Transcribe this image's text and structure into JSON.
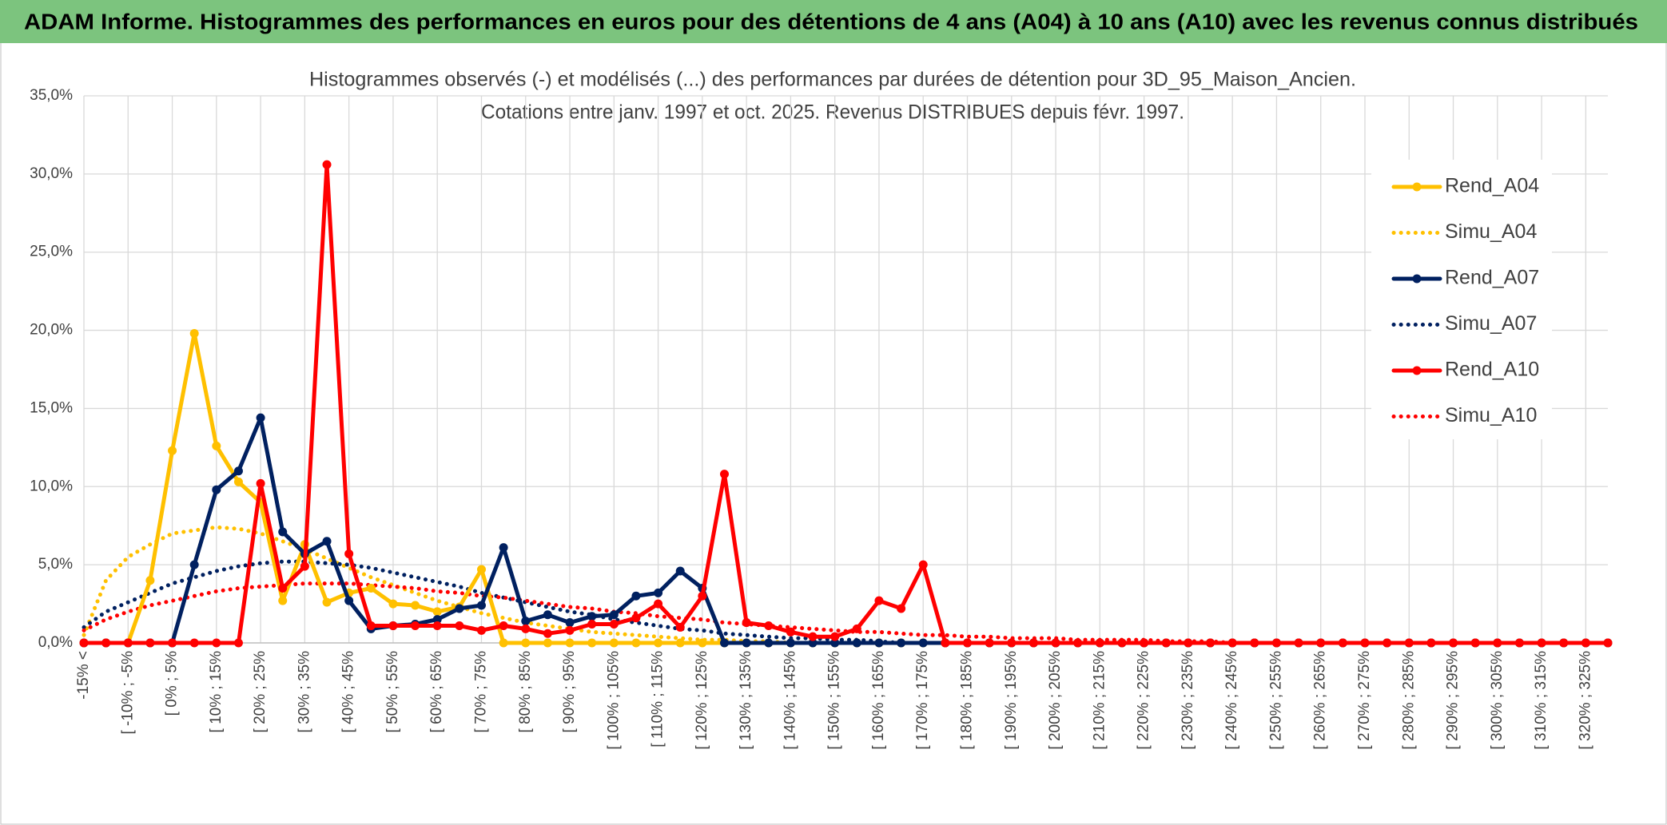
{
  "header": {
    "title": "ADAM Informe. Histogrammes des performances en euros pour des détentions de 4 ans (A04) à 10 ans (A10) avec les revenus connus distribués"
  },
  "chart_data": {
    "type": "line",
    "title": "Histogrammes observés (-) et modélisés (...) des performances par durées de détention pour 3D_95_Maison_Ancien.",
    "subtitle": "Cotations entre janv. 1997 et oct. 2025. Revenus DISTRIBUES depuis févr. 1997.",
    "categories": [
      "-15% <",
      null,
      "[ -10% ; -5%",
      null,
      "[ 0% ; 5%",
      null,
      "[ 10% ; 15%",
      null,
      "[ 20% ; 25%",
      null,
      "[ 30% ; 35%",
      null,
      "[ 40% ; 45%",
      null,
      "[ 50% ; 55%",
      null,
      "[ 60% ; 65%",
      null,
      "[ 70% ; 75%",
      null,
      "[ 80% ; 85%",
      null,
      "[ 90% ; 95%",
      null,
      "[ 100% ; 105%",
      null,
      "[ 110% ; 115%",
      null,
      "[ 120% ; 125%",
      null,
      "[ 130% ; 135%",
      null,
      "[ 140% ; 145%",
      null,
      "[ 150% ; 155%",
      null,
      "[ 160% ; 165%",
      null,
      "[ 170% ; 175%",
      null,
      "[ 180% ; 185%",
      null,
      "[ 190% ; 195%",
      null,
      "[ 200% ; 205%",
      null,
      "[ 210% ; 215%",
      null,
      "[ 220% ; 225%",
      null,
      "[ 230% ; 235%",
      null,
      "[ 240% ; 245%",
      null,
      "[ 250% ; 255%",
      null,
      "[ 260% ; 265%",
      null,
      "[ 270% ; 275%",
      null,
      "[ 280% ; 285%",
      null,
      "[ 290% ; 295%",
      null,
      "[ 300% ; 305%",
      null,
      "[ 310% ; 315%",
      null,
      "[ 320% ; 325%",
      null
    ],
    "series": [
      {
        "name": "Rend_A04",
        "color": "#ffc000",
        "line_style": "solid",
        "values": [
          0,
          0,
          0,
          4.0,
          12.3,
          19.8,
          12.6,
          10.3,
          9.0,
          2.7,
          6.3,
          2.6,
          3.2,
          3.5,
          2.5,
          2.4,
          2.0,
          2.3,
          4.7,
          0,
          0,
          0,
          0,
          0,
          0,
          0,
          0,
          0,
          0,
          0,
          0,
          0,
          0,
          0,
          0,
          0,
          0,
          0,
          0,
          0,
          0,
          0,
          0,
          0,
          0,
          0,
          0,
          0,
          0,
          0,
          0,
          0,
          0,
          0,
          0,
          0,
          0,
          0,
          0,
          0,
          0,
          0,
          0,
          0,
          0,
          0,
          0,
          0,
          0,
          0
        ]
      },
      {
        "name": "Simu_A04",
        "color": "#ffc000",
        "line_style": "dotted",
        "values": [
          0.5,
          4.0,
          5.5,
          6.3,
          7.0,
          7.2,
          7.4,
          7.3,
          7.0,
          6.5,
          6.0,
          5.4,
          4.8,
          4.2,
          3.7,
          3.2,
          2.7,
          2.3,
          1.9,
          1.6,
          1.3,
          1.1,
          0.9,
          0.7,
          0.6,
          0.5,
          0.4,
          0.3,
          0.2,
          0.2,
          0.1,
          0.1,
          0,
          0,
          0,
          0,
          0,
          0,
          0,
          0,
          0,
          0,
          0,
          0,
          0,
          0,
          0,
          0,
          0,
          0,
          0,
          0,
          0,
          0,
          0,
          0,
          0,
          0,
          0,
          0,
          0,
          0,
          0,
          0,
          0,
          0,
          0,
          0,
          0,
          0
        ]
      },
      {
        "name": "Rend_A07",
        "color": "#002060",
        "line_style": "solid",
        "values": [
          0,
          0,
          0,
          0,
          0,
          5.0,
          9.8,
          11.0,
          14.4,
          7.1,
          5.7,
          6.5,
          2.7,
          0.9,
          1.1,
          1.2,
          1.5,
          2.2,
          2.4,
          6.1,
          1.4,
          1.8,
          1.3,
          1.7,
          1.8,
          3.0,
          3.2,
          4.6,
          3.5,
          0,
          0,
          0,
          0,
          0,
          0,
          0,
          0,
          0,
          0,
          0,
          0,
          0,
          0,
          0,
          0,
          0,
          0,
          0,
          0,
          0,
          0,
          0,
          0,
          0,
          0,
          0,
          0,
          0,
          0,
          0,
          0,
          0,
          0,
          0,
          0,
          0,
          0,
          0,
          0,
          0
        ]
      },
      {
        "name": "Simu_A07",
        "color": "#002060",
        "line_style": "dotted",
        "values": [
          1.0,
          2.0,
          2.6,
          3.2,
          3.8,
          4.2,
          4.6,
          4.9,
          5.1,
          5.2,
          5.2,
          5.1,
          5.0,
          4.8,
          4.5,
          4.2,
          3.9,
          3.6,
          3.2,
          2.9,
          2.6,
          2.3,
          2.0,
          1.8,
          1.5,
          1.3,
          1.1,
          0.9,
          0.8,
          0.6,
          0.5,
          0.4,
          0.3,
          0.3,
          0.2,
          0.2,
          0.1,
          0,
          0,
          0,
          0,
          0,
          0,
          0,
          0,
          0,
          0,
          0,
          0,
          0,
          0,
          0,
          0,
          0,
          0,
          0,
          0,
          0,
          0,
          0,
          0,
          0,
          0,
          0,
          0,
          0,
          0,
          0,
          0,
          0
        ]
      },
      {
        "name": "Rend_A10",
        "color": "#ff0000",
        "line_style": "solid",
        "values": [
          0,
          0,
          0,
          0,
          0,
          0,
          0,
          0,
          10.2,
          3.5,
          4.9,
          30.6,
          5.7,
          1.1,
          1.1,
          1.1,
          1.1,
          1.1,
          0.8,
          1.1,
          0.9,
          0.6,
          0.8,
          1.2,
          1.2,
          1.6,
          2.5,
          1.0,
          3.0,
          10.8,
          1.3,
          1.1,
          0.7,
          0.4,
          0.4,
          0.9,
          2.7,
          2.2,
          5.0,
          0,
          0,
          0,
          0,
          0,
          0,
          0,
          0,
          0,
          0,
          0,
          0,
          0,
          0,
          0,
          0,
          0,
          0,
          0,
          0,
          0,
          0,
          0,
          0,
          0,
          0,
          0,
          0,
          0,
          0,
          0
        ]
      },
      {
        "name": "Simu_A10",
        "color": "#ff0000",
        "line_style": "dotted",
        "values": [
          0.8,
          1.5,
          2.0,
          2.4,
          2.7,
          3.0,
          3.3,
          3.5,
          3.6,
          3.7,
          3.8,
          3.8,
          3.8,
          3.7,
          3.6,
          3.5,
          3.3,
          3.2,
          3.0,
          2.9,
          2.7,
          2.5,
          2.3,
          2.2,
          2.0,
          1.9,
          1.7,
          1.6,
          1.5,
          1.3,
          1.2,
          1.1,
          1.0,
          0.9,
          0.8,
          0.7,
          0.7,
          0.6,
          0.5,
          0.5,
          0.4,
          0.4,
          0.3,
          0.3,
          0.3,
          0.2,
          0.2,
          0.2,
          0.2,
          0.1,
          0.1,
          0.1,
          0,
          0,
          0,
          0,
          0,
          0,
          0,
          0,
          0,
          0,
          0,
          0,
          0,
          0,
          0,
          0,
          0,
          0
        ]
      }
    ],
    "ylim": [
      0,
      35
    ],
    "yticks": [
      {
        "value": 0,
        "label": "0,0%"
      },
      {
        "value": 5,
        "label": "5,0%"
      },
      {
        "value": 10,
        "label": "10,0%"
      },
      {
        "value": 15,
        "label": "15,0%"
      },
      {
        "value": 20,
        "label": "20,0%"
      },
      {
        "value": 25,
        "label": "25,0%"
      },
      {
        "value": 30,
        "label": "30,0%"
      },
      {
        "value": 35,
        "label": "35,0%"
      }
    ],
    "grid": true,
    "legend": "right"
  }
}
